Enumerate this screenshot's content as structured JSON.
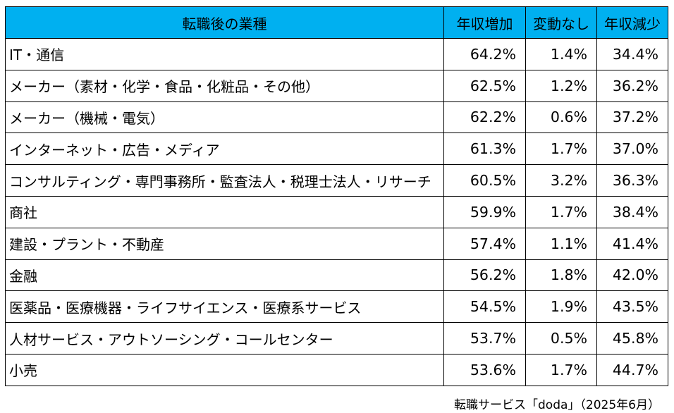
{
  "chart_data": {
    "type": "table",
    "columns": [
      "転職後の業種",
      "年収増加",
      "変動なし",
      "年収減少"
    ],
    "rows": [
      {
        "industry": "IT・通信",
        "increase": "64.2%",
        "no_change": "1.4%",
        "decrease": "34.4%"
      },
      {
        "industry": "メーカー（素材・化学・食品・化粧品・その他）",
        "increase": "62.5%",
        "no_change": "1.2%",
        "decrease": "36.2%"
      },
      {
        "industry": "メーカー（機械・電気）",
        "increase": "62.2%",
        "no_change": "0.6%",
        "decrease": "37.2%"
      },
      {
        "industry": "インターネット・広告・メディア",
        "increase": "61.3%",
        "no_change": "1.7%",
        "decrease": "37.0%"
      },
      {
        "industry": "コンサルティング・専門事務所・監査法人・税理士法人・リサーチ",
        "increase": "60.5%",
        "no_change": "3.2%",
        "decrease": "36.3%"
      },
      {
        "industry": "商社",
        "increase": "59.9%",
        "no_change": "1.7%",
        "decrease": "38.4%"
      },
      {
        "industry": "建設・プラント・不動産",
        "increase": "57.4%",
        "no_change": "1.1%",
        "decrease": "41.4%"
      },
      {
        "industry": "金融",
        "increase": "56.2%",
        "no_change": "1.8%",
        "decrease": "42.0%"
      },
      {
        "industry": "医薬品・医療機器・ライフサイエンス・医療系サービス",
        "increase": "54.5%",
        "no_change": "1.9%",
        "decrease": "43.5%"
      },
      {
        "industry": "人材サービス・アウトソーシング・コールセンター",
        "increase": "53.7%",
        "no_change": "0.5%",
        "decrease": "45.8%"
      },
      {
        "industry": "小売",
        "increase": "53.6%",
        "no_change": "1.7%",
        "decrease": "44.7%"
      }
    ],
    "source": "転職サービス「doda」（2025年6月）"
  },
  "colors": {
    "header_bg": "#00b0f0",
    "border": "#000000",
    "text": "#000000",
    "background": "#ffffff"
  }
}
